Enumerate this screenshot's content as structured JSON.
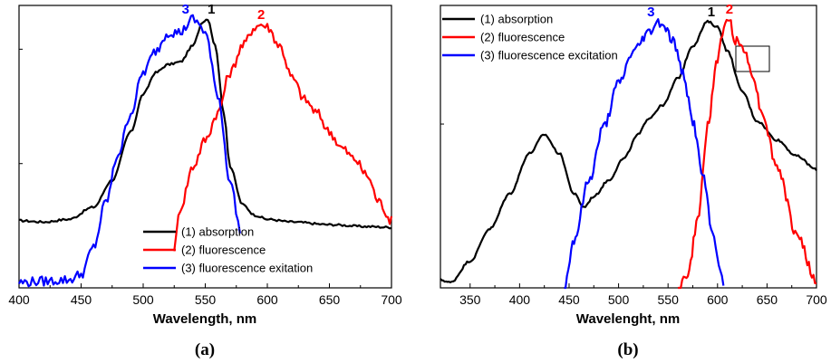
{
  "chart_data": [
    {
      "type": "line",
      "panel_label": "(a)",
      "xlabel": "Wavelength, nm",
      "ylabel": "",
      "xlim": [
        400,
        700
      ],
      "ylim": [
        0,
        1.05
      ],
      "xticks": [
        400,
        450,
        500,
        550,
        600,
        650,
        700
      ],
      "legend_position": "bottom-right",
      "series": [
        {
          "name": "(1) absorption",
          "color": "#000000",
          "peak_label": "1",
          "x": [
            400,
            420,
            440,
            460,
            475,
            490,
            500,
            510,
            520,
            530,
            540,
            548,
            552,
            558,
            565,
            570,
            580,
            590,
            600,
            620,
            650,
            680,
            700
          ],
          "y": [
            0.25,
            0.245,
            0.255,
            0.3,
            0.4,
            0.58,
            0.72,
            0.8,
            0.83,
            0.84,
            0.9,
            0.99,
            1.0,
            0.9,
            0.65,
            0.45,
            0.31,
            0.27,
            0.255,
            0.245,
            0.235,
            0.228,
            0.225
          ]
        },
        {
          "name": "(2) fluorescence",
          "color": "#ff0000",
          "peak_label": "2",
          "x": [
            525,
            530,
            540,
            550,
            560,
            570,
            580,
            590,
            595,
            600,
            610,
            620,
            630,
            640,
            650,
            660,
            670,
            680,
            690,
            700
          ],
          "y": [
            0.15,
            0.3,
            0.45,
            0.55,
            0.65,
            0.8,
            0.9,
            0.97,
            0.98,
            0.97,
            0.9,
            0.78,
            0.7,
            0.65,
            0.58,
            0.52,
            0.48,
            0.42,
            0.32,
            0.25
          ]
        },
        {
          "name": "(3) fluorescence exitation",
          "color": "#0000ff",
          "peak_label": "3",
          "x": [
            400,
            420,
            440,
            450,
            460,
            470,
            480,
            490,
            500,
            510,
            520,
            530,
            540,
            545,
            550,
            560,
            570,
            578
          ],
          "y": [
            0.02,
            0.025,
            0.03,
            0.05,
            0.15,
            0.32,
            0.5,
            0.65,
            0.8,
            0.88,
            0.95,
            0.95,
            1.0,
            0.98,
            0.95,
            0.72,
            0.4,
            0.22
          ]
        }
      ]
    },
    {
      "type": "line",
      "panel_label": "(b)",
      "xlabel": "Wavelenght, nm",
      "ylabel": "",
      "xlim": [
        320,
        700
      ],
      "ylim": [
        0,
        1.05
      ],
      "xticks": [
        350,
        400,
        450,
        500,
        550,
        600,
        650,
        700
      ],
      "legend_position": "top-left",
      "series": [
        {
          "name": "(1) absorption",
          "color": "#000000",
          "peak_label": "1",
          "x": [
            320,
            330,
            350,
            370,
            390,
            410,
            425,
            440,
            455,
            465,
            475,
            490,
            505,
            520,
            530,
            545,
            560,
            575,
            590,
            600,
            610,
            625,
            640,
            660,
            680,
            700
          ],
          "y": [
            0.03,
            0.02,
            0.1,
            0.22,
            0.35,
            0.5,
            0.57,
            0.5,
            0.35,
            0.3,
            0.34,
            0.4,
            0.48,
            0.57,
            0.63,
            0.68,
            0.78,
            0.9,
            0.99,
            0.97,
            0.88,
            0.73,
            0.62,
            0.55,
            0.49,
            0.44
          ]
        },
        {
          "name": "(2) fluorescence",
          "color": "#ff0000",
          "peak_label": "2",
          "x": [
            560,
            570,
            580,
            590,
            600,
            605,
            612,
            618,
            625,
            635,
            645,
            660,
            680,
            700
          ],
          "y": [
            0.0,
            0.05,
            0.25,
            0.6,
            0.85,
            0.95,
            1.0,
            0.92,
            0.9,
            0.8,
            0.65,
            0.45,
            0.2,
            0.02
          ]
        },
        {
          "name": "(3) fluorescence excitation",
          "color": "#0000ff",
          "peak_label": "3",
          "x": [
            445,
            455,
            470,
            485,
            500,
            515,
            530,
            540,
            545,
            555,
            565,
            575,
            585,
            595,
            606
          ],
          "y": [
            0.0,
            0.18,
            0.4,
            0.6,
            0.76,
            0.88,
            0.95,
            0.99,
            0.98,
            0.92,
            0.8,
            0.62,
            0.42,
            0.2,
            0.02
          ]
        }
      ]
    }
  ]
}
